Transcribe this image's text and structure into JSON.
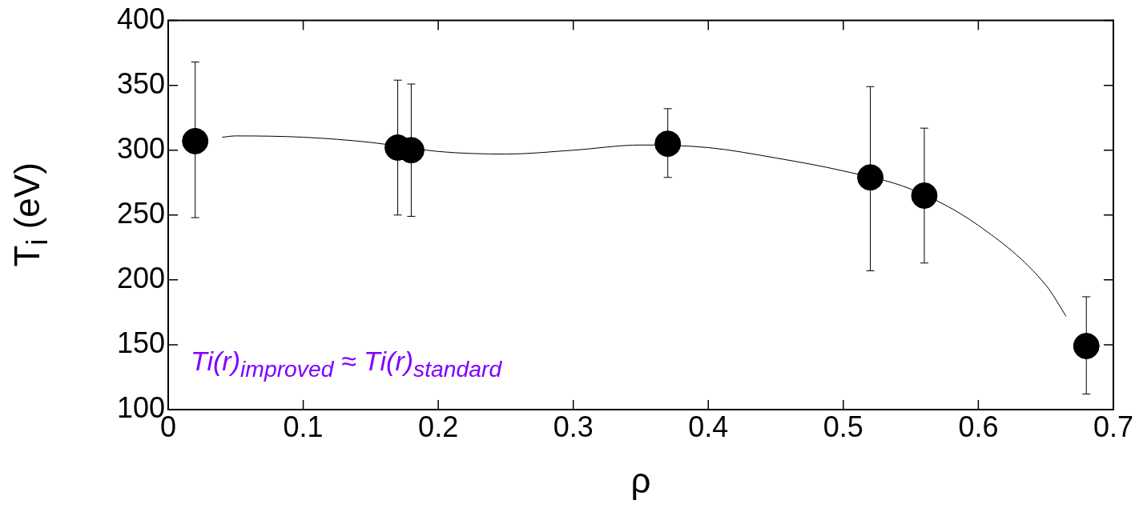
{
  "chart_data": {
    "type": "scatter",
    "xlabel": "ρ",
    "ylabel": "T$_{i}$ (eV)",
    "annotations": [
      "Ti(r)$_{improved}$ ≈ Ti(r)$_{standard}$"
    ],
    "xlim": [
      0,
      0.7
    ],
    "xticks": [
      0,
      0.1,
      0.2,
      0.3,
      0.4,
      0.5,
      0.6,
      0.7
    ],
    "ylim": [
      100,
      400
    ],
    "yticks": [
      100,
      150,
      200,
      250,
      300,
      350,
      400
    ],
    "grid": false,
    "legend": false,
    "marker": "circle",
    "series": [
      {
        "color": "#000000",
        "x": [
          0.02,
          0.17,
          0.18,
          0.37,
          0.52,
          0.56,
          0.68
        ],
        "values": [
          307,
          302,
          300,
          305,
          279,
          265,
          149
        ],
        "errors": [
          [
            248,
            368
          ],
          [
            250,
            354
          ],
          [
            249,
            351
          ],
          [
            279,
            332
          ],
          [
            207,
            349
          ],
          [
            213,
            317
          ],
          [
            112,
            187
          ]
        ]
      },
      {
        "type": "line",
        "color": "#000000",
        "marker": "none",
        "line_style": "solid",
        "x": [
          0.04,
          0.05,
          0.1,
          0.15,
          0.2,
          0.25,
          0.3,
          0.35,
          0.4,
          0.45,
          0.5,
          0.55,
          0.6,
          0.65,
          0.665
        ],
        "values": [
          310,
          311,
          310,
          306,
          299,
          297,
          300,
          304,
          302,
          294,
          284,
          270,
          242,
          196,
          172
        ]
      }
    ]
  }
}
